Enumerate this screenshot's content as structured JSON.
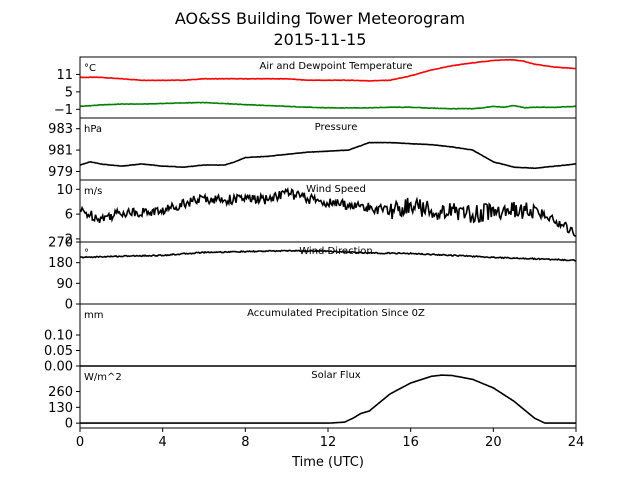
{
  "title": "AO&SS Building Tower Meteorogram",
  "subtitle": "2015-11-15",
  "chart_data": [
    {
      "type": "line",
      "title": "Air and Dewpoint Temperature",
      "unit": "°C",
      "ylim": [
        -4,
        17
      ],
      "yticks": [
        "11",
        "5",
        "−1"
      ],
      "ytick_values": [
        11,
        5,
        -1
      ],
      "series": [
        {
          "color": "#ff0000",
          "x": [
            0,
            1,
            2,
            3,
            4,
            5,
            6,
            7,
            8,
            9,
            10,
            11,
            12,
            13,
            14,
            15,
            16,
            17,
            18,
            19,
            20,
            20.5,
            21,
            21.5,
            22,
            23,
            24
          ],
          "values": [
            10,
            10,
            9.5,
            9,
            9,
            9,
            9.5,
            9.5,
            9.5,
            9.5,
            9.5,
            9,
            9,
            9,
            8.8,
            9,
            10.5,
            12.5,
            14,
            15,
            15.8,
            16,
            16,
            15.5,
            14.5,
            13.5,
            13
          ]
        },
        {
          "color": "#008000",
          "x": [
            0,
            1,
            2,
            3,
            4,
            5,
            6,
            7,
            8,
            9,
            10,
            11,
            12,
            13,
            14,
            15,
            16,
            17,
            18,
            19,
            19.5,
            20,
            20.5,
            21,
            21.5,
            22,
            23,
            24
          ],
          "values": [
            0,
            0.5,
            0.8,
            0.8,
            1,
            1.2,
            1.3,
            1,
            0.6,
            0.3,
            0,
            -0.3,
            -0.5,
            -0.5,
            -0.5,
            -0.3,
            -0.3,
            -0.6,
            -0.8,
            -0.8,
            -0.5,
            0,
            -0.3,
            0.3,
            -0.5,
            -0.3,
            -0.3,
            0
          ]
        }
      ]
    },
    {
      "type": "line",
      "title": "Pressure",
      "unit": "hPa",
      "ylim": [
        978.2,
        984
      ],
      "yticks": [
        "983",
        "981",
        "979"
      ],
      "ytick_values": [
        983,
        981,
        979
      ],
      "series": [
        {
          "color": "#000000",
          "x": [
            0,
            0.5,
            1,
            2,
            3,
            4,
            5,
            6,
            7,
            7.5,
            8,
            9,
            10,
            11,
            12,
            13,
            14,
            15,
            16,
            17,
            18,
            19,
            20,
            21,
            22,
            23,
            24
          ],
          "values": [
            979.6,
            979.9,
            979.7,
            979.5,
            979.7,
            979.5,
            979.4,
            979.6,
            979.6,
            979.9,
            980.3,
            980.4,
            980.6,
            980.8,
            980.9,
            981,
            981.7,
            981.7,
            981.6,
            981.5,
            981.3,
            981,
            979.9,
            979.4,
            979.3,
            979.5,
            979.7
          ]
        }
      ]
    },
    {
      "type": "line",
      "title": "Wind Speed",
      "unit": "m/s",
      "ylim": [
        1.5,
        11.5
      ],
      "yticks": [
        "10",
        "6",
        "2"
      ],
      "ytick_values": [
        10,
        6,
        2
      ],
      "series": [
        {
          "color": "#000000",
          "x": [
            0,
            1,
            2,
            3,
            4,
            5,
            6,
            7,
            8,
            9,
            10,
            11,
            12,
            13,
            14,
            15,
            16,
            17,
            18,
            19,
            20,
            21,
            22,
            23,
            24
          ],
          "values": [
            6.5,
            5.3,
            6.3,
            6.3,
            6.5,
            7.8,
            8.5,
            8.3,
            8.5,
            8.3,
            9.5,
            8.5,
            7.8,
            7.5,
            7,
            6.5,
            7.5,
            6.5,
            6.5,
            6,
            6.5,
            6.5,
            6.5,
            5,
            3
          ]
        }
      ]
    },
    {
      "type": "line",
      "title": "Wind Direction",
      "unit": "°",
      "ylim": [
        0,
        270
      ],
      "yticks": [
        "270",
        "180",
        "90",
        "0"
      ],
      "ytick_values": [
        270,
        180,
        90,
        0
      ],
      "series": [
        {
          "color": "#000000",
          "x": [
            0,
            2,
            4,
            6,
            8,
            10,
            12,
            14,
            16,
            18,
            20,
            22,
            24
          ],
          "values": [
            203,
            208,
            212,
            225,
            228,
            232,
            230,
            222,
            220,
            212,
            203,
            197,
            190
          ]
        }
      ]
    },
    {
      "type": "line",
      "title": "Accumulated Precipitation Since 0Z",
      "unit": "mm",
      "ylim": [
        0,
        0.2
      ],
      "yticks": [
        "0.10",
        "0.05",
        "0.00"
      ],
      "ytick_values": [
        0.1,
        0.05,
        0
      ],
      "series": [
        {
          "color": "#000000",
          "x": [
            0,
            24
          ],
          "values": [
            0,
            0
          ]
        }
      ]
    },
    {
      "type": "line",
      "title": "Solar Flux",
      "unit": "W/m^2",
      "ylim": [
        -40,
        470
      ],
      "yticks": [
        "260",
        "130",
        "0"
      ],
      "ytick_values": [
        260,
        130,
        0
      ],
      "series": [
        {
          "color": "#000000",
          "x": [
            0,
            12,
            12.8,
            13.2,
            13.6,
            14,
            14.5,
            15,
            16,
            17,
            17.5,
            18,
            19,
            20,
            21,
            21.5,
            22,
            22.5,
            24
          ],
          "values": [
            0,
            0,
            8,
            40,
            80,
            100,
            170,
            240,
            330,
            385,
            395,
            392,
            360,
            290,
            180,
            110,
            40,
            0,
            0
          ]
        }
      ]
    }
  ],
  "x_axis": {
    "label": "Time (UTC)",
    "xlim": [
      0,
      24
    ],
    "ticks": [
      "0",
      "4",
      "8",
      "12",
      "16",
      "20",
      "24"
    ],
    "tick_values": [
      0,
      4,
      8,
      12,
      16,
      20,
      24
    ]
  }
}
